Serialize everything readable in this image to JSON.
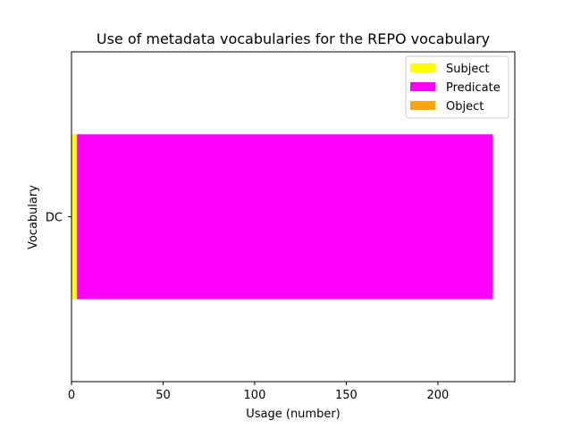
{
  "chart_data": {
    "type": "bar",
    "orientation": "horizontal",
    "stacked": true,
    "title": "Use of metadata vocabularies for the REPO vocabulary",
    "xlabel": "Usage (number)",
    "ylabel": "Vocabulary",
    "categories": [
      "DC"
    ],
    "series": [
      {
        "name": "Subject",
        "values": [
          3
        ],
        "color": "#ffff00"
      },
      {
        "name": "Predicate",
        "values": [
          227
        ],
        "color": "#ff00ff"
      },
      {
        "name": "Object",
        "values": [
          0
        ],
        "color": "#ffa500"
      }
    ],
    "xlim": [
      0,
      242
    ],
    "xticks": [
      0,
      50,
      100,
      150,
      200
    ],
    "grid": false,
    "legend_position": "top-right"
  }
}
